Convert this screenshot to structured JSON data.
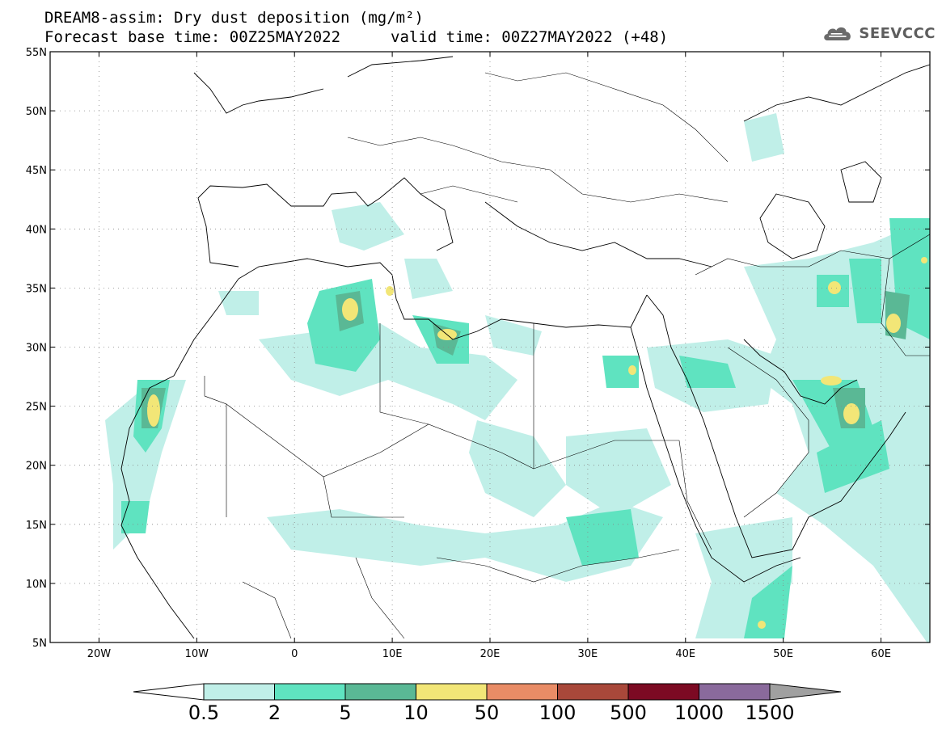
{
  "title_line1": "DREAM8-assim: Dry dust deposition (mg/m²)",
  "title_line2_left": "Forecast base time: 00Z25MAY2022",
  "title_line2_right": "valid time: 00Z27MAY2022 (+48)",
  "logo_text": "SEEVCCC",
  "logo_icon": "cloud-icon",
  "lat_labels": [
    "55N",
    "50N",
    "45N",
    "40N",
    "35N",
    "30N",
    "25N",
    "20N",
    "15N",
    "10N",
    "5N"
  ],
  "lon_labels": [
    "20W",
    "10W",
    "0",
    "10E",
    "20E",
    "30E",
    "40E",
    "50E",
    "60E"
  ],
  "colorbar": {
    "labels": [
      "0.5",
      "2",
      "5",
      "10",
      "50",
      "100",
      "500",
      "1000",
      "1500"
    ],
    "colors": [
      "#c0efe8",
      "#5fe3c0",
      "#5ab895",
      "#f2e677",
      "#e98c66",
      "#a9483a",
      "#7c0a23",
      "#8a6a9c",
      "#a0a0a0"
    ],
    "under_color": "#ffffff"
  }
}
